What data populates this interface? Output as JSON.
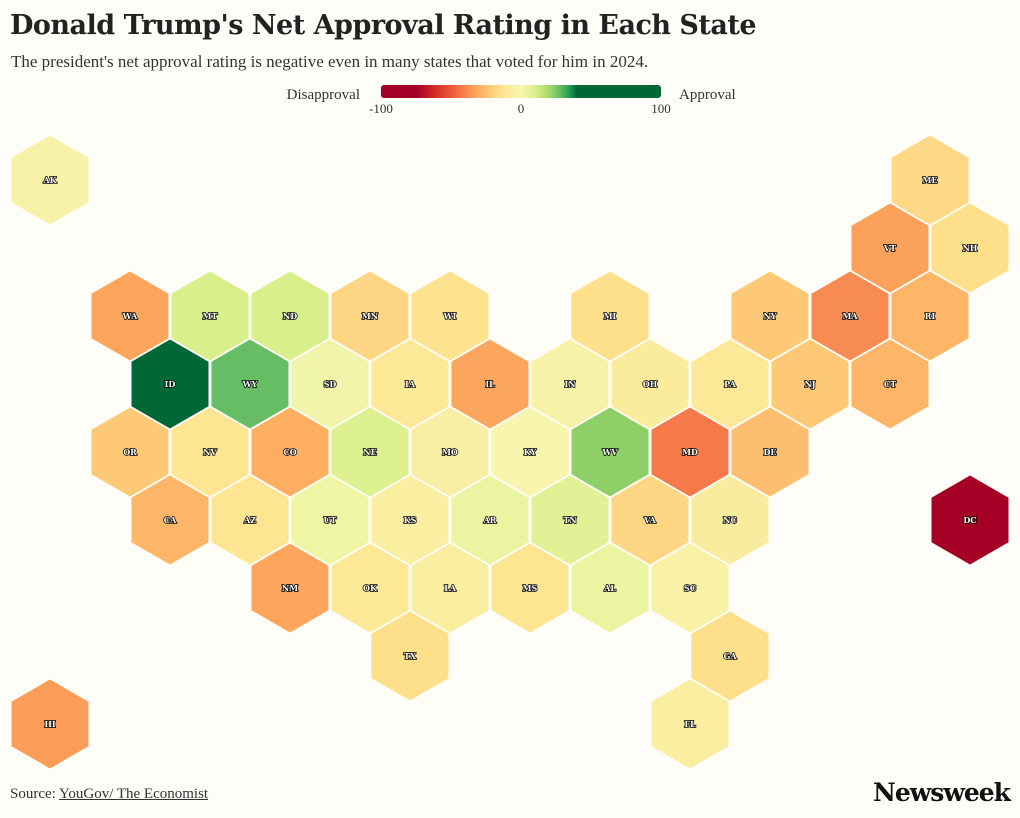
{
  "chart_data": {
    "type": "heatmap",
    "subtype": "hex-tile-map",
    "title": "Donald Trump's Net Approval Rating in Each State",
    "subtitle": "The president's net approval rating is negative even in many states that voted for him in 2024.",
    "legend": {
      "left_label": "Disapproval",
      "right_label": "Approval",
      "ticks": [
        "-100",
        "0",
        "100"
      ],
      "range": [
        -100,
        100
      ],
      "placement": "top-center"
    },
    "color_scale": [
      [
        -100,
        "#a50026"
      ],
      [
        -75,
        "#a50026"
      ],
      [
        -60,
        "#d73027"
      ],
      [
        -45,
        "#f46d43"
      ],
      [
        -30,
        "#fdae61"
      ],
      [
        -15,
        "#fee08b"
      ],
      [
        0,
        "#f7f7b0"
      ],
      [
        10,
        "#d9ef8b"
      ],
      [
        20,
        "#a6d96a"
      ],
      [
        28,
        "#66bd63"
      ],
      [
        35,
        "#1a9850"
      ],
      [
        40,
        "#006837"
      ],
      [
        100,
        "#006837"
      ]
    ],
    "states": [
      {
        "state": "AK",
        "row": 0,
        "col": 0,
        "value": -3
      },
      {
        "state": "ME",
        "row": 0,
        "col": 11,
        "value": -17
      },
      {
        "state": "VT",
        "row": 1,
        "col": 10,
        "value": -33
      },
      {
        "state": "NH",
        "row": 1,
        "col": 11,
        "value": -15
      },
      {
        "state": "WA",
        "row": 2,
        "col": 1,
        "value": -32
      },
      {
        "state": "MT",
        "row": 2,
        "col": 2,
        "value": 10
      },
      {
        "state": "ND",
        "row": 2,
        "col": 3,
        "value": 10
      },
      {
        "state": "MN",
        "row": 2,
        "col": 4,
        "value": -18
      },
      {
        "state": "WI",
        "row": 2,
        "col": 5,
        "value": -13
      },
      {
        "state": "MI",
        "row": 2,
        "col": 7,
        "value": -15
      },
      {
        "state": "NY",
        "row": 2,
        "col": 9,
        "value": -22
      },
      {
        "state": "MA",
        "row": 2,
        "col": 10,
        "value": -38
      },
      {
        "state": "RI",
        "row": 2,
        "col": 11,
        "value": -28
      },
      {
        "state": "ID",
        "row": 3,
        "col": 1,
        "value": 42
      },
      {
        "state": "WY",
        "row": 3,
        "col": 2,
        "value": 28
      },
      {
        "state": "SD",
        "row": 3,
        "col": 3,
        "value": 2
      },
      {
        "state": "IA",
        "row": 3,
        "col": 4,
        "value": -10
      },
      {
        "state": "IL",
        "row": 3,
        "col": 5,
        "value": -32
      },
      {
        "state": "IN",
        "row": 3,
        "col": 6,
        "value": -3
      },
      {
        "state": "OH",
        "row": 3,
        "col": 7,
        "value": -8
      },
      {
        "state": "PA",
        "row": 3,
        "col": 8,
        "value": -10
      },
      {
        "state": "NJ",
        "row": 3,
        "col": 9,
        "value": -22
      },
      {
        "state": "CT",
        "row": 3,
        "col": 10,
        "value": -28
      },
      {
        "state": "OR",
        "row": 4,
        "col": 1,
        "value": -22
      },
      {
        "state": "NV",
        "row": 4,
        "col": 2,
        "value": -12
      },
      {
        "state": "CO",
        "row": 4,
        "col": 3,
        "value": -30
      },
      {
        "state": "NE",
        "row": 4,
        "col": 4,
        "value": 9
      },
      {
        "state": "MO",
        "row": 4,
        "col": 5,
        "value": -5
      },
      {
        "state": "KY",
        "row": 4,
        "col": 6,
        "value": -1
      },
      {
        "state": "WV",
        "row": 4,
        "col": 7,
        "value": 23
      },
      {
        "state": "MD",
        "row": 4,
        "col": 8,
        "value": -42
      },
      {
        "state": "DE",
        "row": 4,
        "col": 9,
        "value": -25
      },
      {
        "state": "CA",
        "row": 5,
        "col": 1,
        "value": -28
      },
      {
        "state": "AZ",
        "row": 5,
        "col": 2,
        "value": -12
      },
      {
        "state": "UT",
        "row": 5,
        "col": 3,
        "value": 3
      },
      {
        "state": "KS",
        "row": 5,
        "col": 4,
        "value": -6
      },
      {
        "state": "AR",
        "row": 5,
        "col": 5,
        "value": 4
      },
      {
        "state": "TN",
        "row": 5,
        "col": 6,
        "value": 7
      },
      {
        "state": "VA",
        "row": 5,
        "col": 7,
        "value": -18
      },
      {
        "state": "NC",
        "row": 5,
        "col": 8,
        "value": -7
      },
      {
        "state": "DC",
        "row": 5,
        "col": 11,
        "value": -85
      },
      {
        "state": "NM",
        "row": 6,
        "col": 3,
        "value": -32
      },
      {
        "state": "OK",
        "row": 6,
        "col": 4,
        "value": -10
      },
      {
        "state": "LA",
        "row": 6,
        "col": 5,
        "value": -6
      },
      {
        "state": "MS",
        "row": 6,
        "col": 6,
        "value": -12
      },
      {
        "state": "AL",
        "row": 6,
        "col": 7,
        "value": 4
      },
      {
        "state": "SC",
        "row": 6,
        "col": 8,
        "value": -4
      },
      {
        "state": "TX",
        "row": 7,
        "col": 4,
        "value": -15
      },
      {
        "state": "GA",
        "row": 7,
        "col": 8,
        "value": -15
      },
      {
        "state": "HI",
        "row": 8,
        "col": 0,
        "value": -34
      },
      {
        "state": "FL",
        "row": 8,
        "col": 8,
        "value": -6
      }
    ]
  },
  "footer": {
    "source_label": "Source:",
    "source_link": "YouGov/ The Economist",
    "logo": "Newsweek"
  }
}
